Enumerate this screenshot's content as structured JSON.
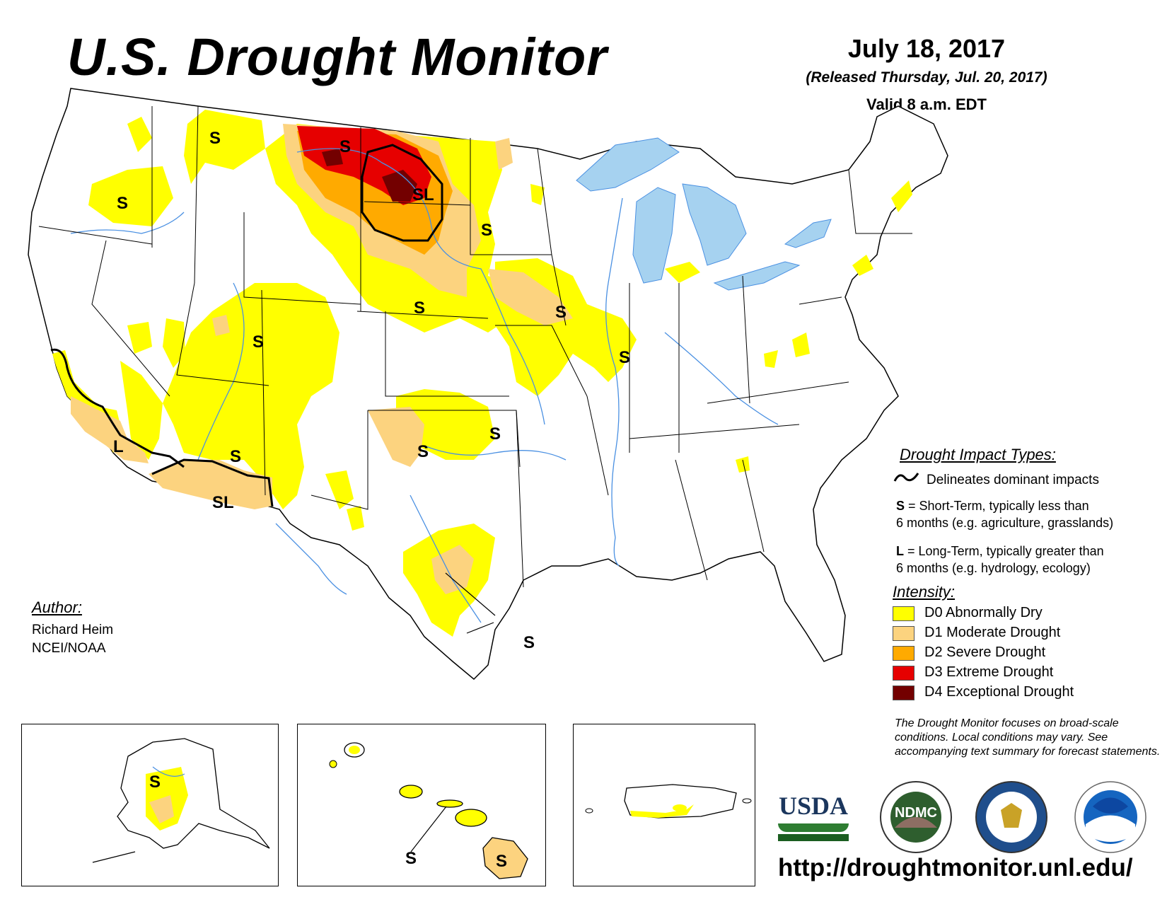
{
  "header": {
    "title": "U.S. Drought Monitor",
    "date": "July 18, 2017",
    "released": "(Released Thursday, Jul. 20, 2017)",
    "valid": "Valid 8 a.m. EDT"
  },
  "author": {
    "heading": "Author:",
    "name": "Richard Heim",
    "org": "NCEI/NOAA"
  },
  "impact_types": {
    "heading": "Drought Impact Types:",
    "delineates": "Delineates dominant impacts",
    "short_term_key": "S",
    "short_term_text": "= Short-Term, typically less than",
    "short_term_text2": "6 months (e.g. agriculture, grasslands)",
    "long_term_key": "L",
    "long_term_text": "= Long-Term, typically greater than",
    "long_term_text2": "6 months (e.g. hydrology, ecology)"
  },
  "intensity": {
    "heading": "Intensity:",
    "levels": [
      {
        "label": "D0 Abnormally Dry",
        "color": "#ffff00"
      },
      {
        "label": "D1 Moderate Drought",
        "color": "#fcd37f"
      },
      {
        "label": "D2 Severe Drought",
        "color": "#ffaa00"
      },
      {
        "label": "D3 Extreme Drought",
        "color": "#e60000"
      },
      {
        "label": "D4 Exceptional Drought",
        "color": "#730000"
      }
    ]
  },
  "note": "The Drought Monitor focuses on broad-scale conditions. Local conditions may vary. See accompanying text summary for forecast statements.",
  "logos": {
    "usda": "USDA",
    "ndmc": "NDMC"
  },
  "url": "http://droughtmonitor.unl.edu/",
  "map_labels": {
    "s": "S",
    "l": "L",
    "sl": "SL"
  },
  "colors": {
    "water": "#a6d2f0",
    "river": "#4a90e2",
    "d0": "#ffff00",
    "d1": "#fcd37f",
    "d2": "#ffaa00",
    "d3": "#e60000",
    "d4": "#730000"
  }
}
